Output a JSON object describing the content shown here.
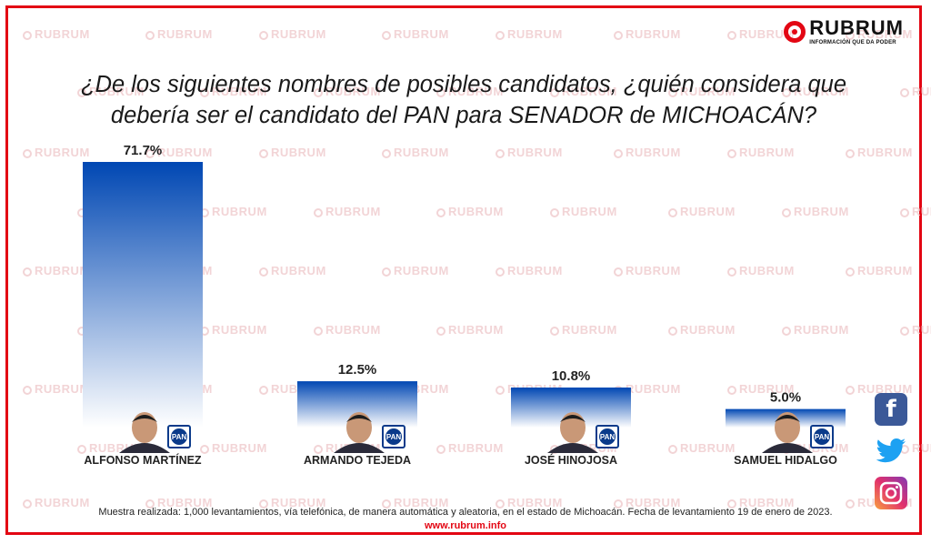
{
  "brand": {
    "name": "RUBRUM",
    "tagline": "INFORMACIÓN QUE DA PODER",
    "watermark": "RUBRUM",
    "accent_color": "#e30613"
  },
  "title": {
    "line1": "¿De los siguientes nombres de posibles candidatos, ¿quién considera que",
    "line2": "debería ser el candidato del PAN para SENADOR de MICHOACÁN?"
  },
  "chart_data": {
    "type": "bar",
    "title": "¿De los siguientes nombres de posibles candidatos, ¿quién considera que debería ser el candidato del PAN para SENADOR de MICHOACÁN?",
    "categories": [
      "ALFONSO MARTÍNEZ",
      "ARMANDO TEJEDA",
      "JOSÉ HINOJOSA",
      "SAMUEL HIDALGO"
    ],
    "values": [
      71.7,
      12.5,
      10.8,
      5.0
    ],
    "value_labels": [
      "71.7%",
      "12.5%",
      "10.8%",
      "5.0%"
    ],
    "party_badge": "PAN",
    "ylim": [
      0,
      71.7
    ],
    "grid": false,
    "bar_color_top": "#0047b3",
    "bar_color_bottom": "#ffffff"
  },
  "footnote": "Muestra realizada: 1,000 levantamientos, vía telefónica, de manera automática y aleatoria, en el estado de Michoacán. Fecha de levantamiento 19 de enero de 2023.",
  "website": "www.rubrum.info",
  "social": [
    {
      "name": "facebook-icon",
      "glyph": "f"
    },
    {
      "name": "twitter-icon",
      "glyph": ""
    },
    {
      "name": "instagram-icon",
      "glyph": ""
    }
  ]
}
